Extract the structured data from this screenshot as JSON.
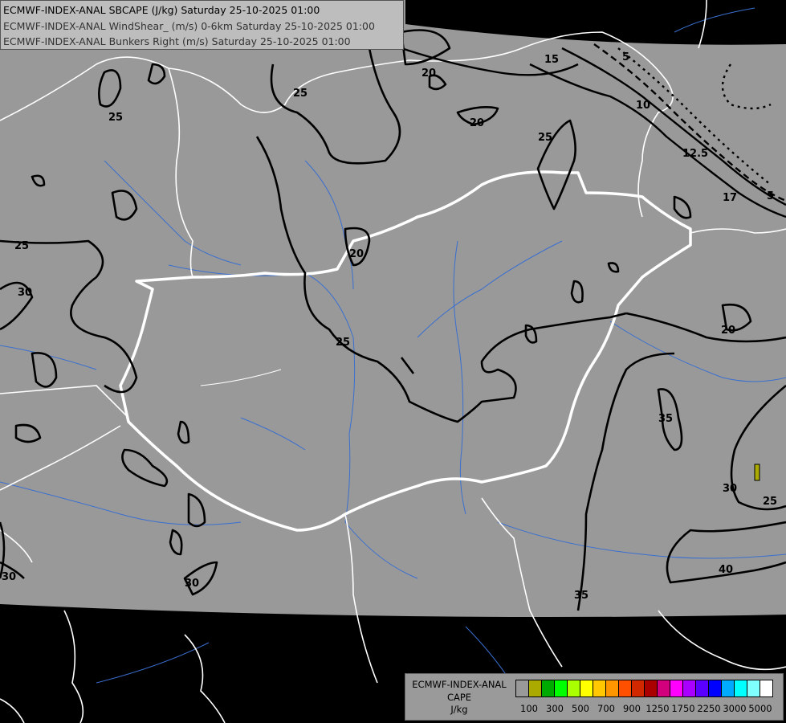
{
  "header": {
    "line1": "ECMWF-INDEX-ANAL SBCAPE (J/kg) Saturday 25-10-2025 01:00",
    "line2": "ECMWF-INDEX-ANAL WindShear_ (m/s) 0-6km Saturday 25-10-2025 01:00",
    "line3": "ECMWF-INDEX-ANAL Bunkers Right (m/s) Saturday 25-10-2025 01:00"
  },
  "legend": {
    "title_line1": "ECMWF-INDEX-ANAL",
    "title_line2": "CAPE",
    "unit": "J/kg",
    "colors": [
      "#999999",
      "#aaaa00",
      "#00aa00",
      "#00ff00",
      "#aaff00",
      "#ffff00",
      "#ffc800",
      "#ff9600",
      "#ff5000",
      "#d22800",
      "#aa0000",
      "#d2007d",
      "#ff00ff",
      "#aa00ff",
      "#5a00ff",
      "#0000ff",
      "#00aaff",
      "#00ffff",
      "#80ffff",
      "#ffffff"
    ],
    "tick_labels": [
      "100",
      "300",
      "500",
      "700",
      "900",
      "1250",
      "1750",
      "2250",
      "3000",
      "5000"
    ]
  },
  "map": {
    "background_color": "#999999",
    "outside_color": "#000000",
    "cape_patch_color": "#aaaa00",
    "contour_labels": [
      "25",
      "25",
      "25",
      "20",
      "20",
      "20",
      "15",
      "5",
      "10",
      "12.5",
      "17",
      "5",
      "25",
      "30",
      "20",
      "25",
      "20",
      "35",
      "30",
      "25",
      "40",
      "35",
      "30",
      "30"
    ]
  }
}
